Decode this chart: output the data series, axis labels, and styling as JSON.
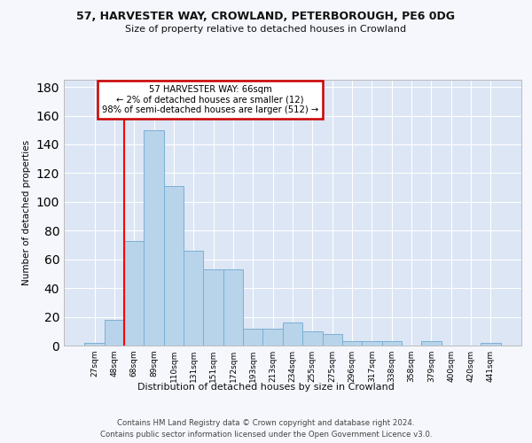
{
  "title1": "57, HARVESTER WAY, CROWLAND, PETERBOROUGH, PE6 0DG",
  "title2": "Size of property relative to detached houses in Crowland",
  "xlabel": "Distribution of detached houses by size in Crowland",
  "ylabel": "Number of detached properties",
  "categories": [
    "27sqm",
    "48sqm",
    "68sqm",
    "89sqm",
    "110sqm",
    "131sqm",
    "151sqm",
    "172sqm",
    "193sqm",
    "213sqm",
    "234sqm",
    "255sqm",
    "275sqm",
    "296sqm",
    "317sqm",
    "338sqm",
    "358sqm",
    "379sqm",
    "400sqm",
    "420sqm",
    "441sqm"
  ],
  "values": [
    2,
    18,
    73,
    150,
    111,
    66,
    53,
    53,
    12,
    12,
    16,
    10,
    8,
    3,
    3,
    3,
    0,
    3,
    0,
    0,
    2
  ],
  "bar_color": "#b8d4ea",
  "bar_edge_color": "#7aafd4",
  "annotation_line1": "57 HARVESTER WAY: 66sqm",
  "annotation_line2": "← 2% of detached houses are smaller (12)",
  "annotation_line3": "98% of semi-detached houses are larger (512) →",
  "annotation_box_color": "#ffffff",
  "annotation_box_edge": "#cc0000",
  "redline_index": 1.5,
  "ylim": [
    0,
    185
  ],
  "yticks": [
    0,
    20,
    40,
    60,
    80,
    100,
    120,
    140,
    160,
    180
  ],
  "bg_color": "#dce6f5",
  "fig_bg_color": "#f5f7fc",
  "grid_color": "#ffffff",
  "footer1": "Contains HM Land Registry data © Crown copyright and database right 2024.",
  "footer2": "Contains public sector information licensed under the Open Government Licence v3.0."
}
